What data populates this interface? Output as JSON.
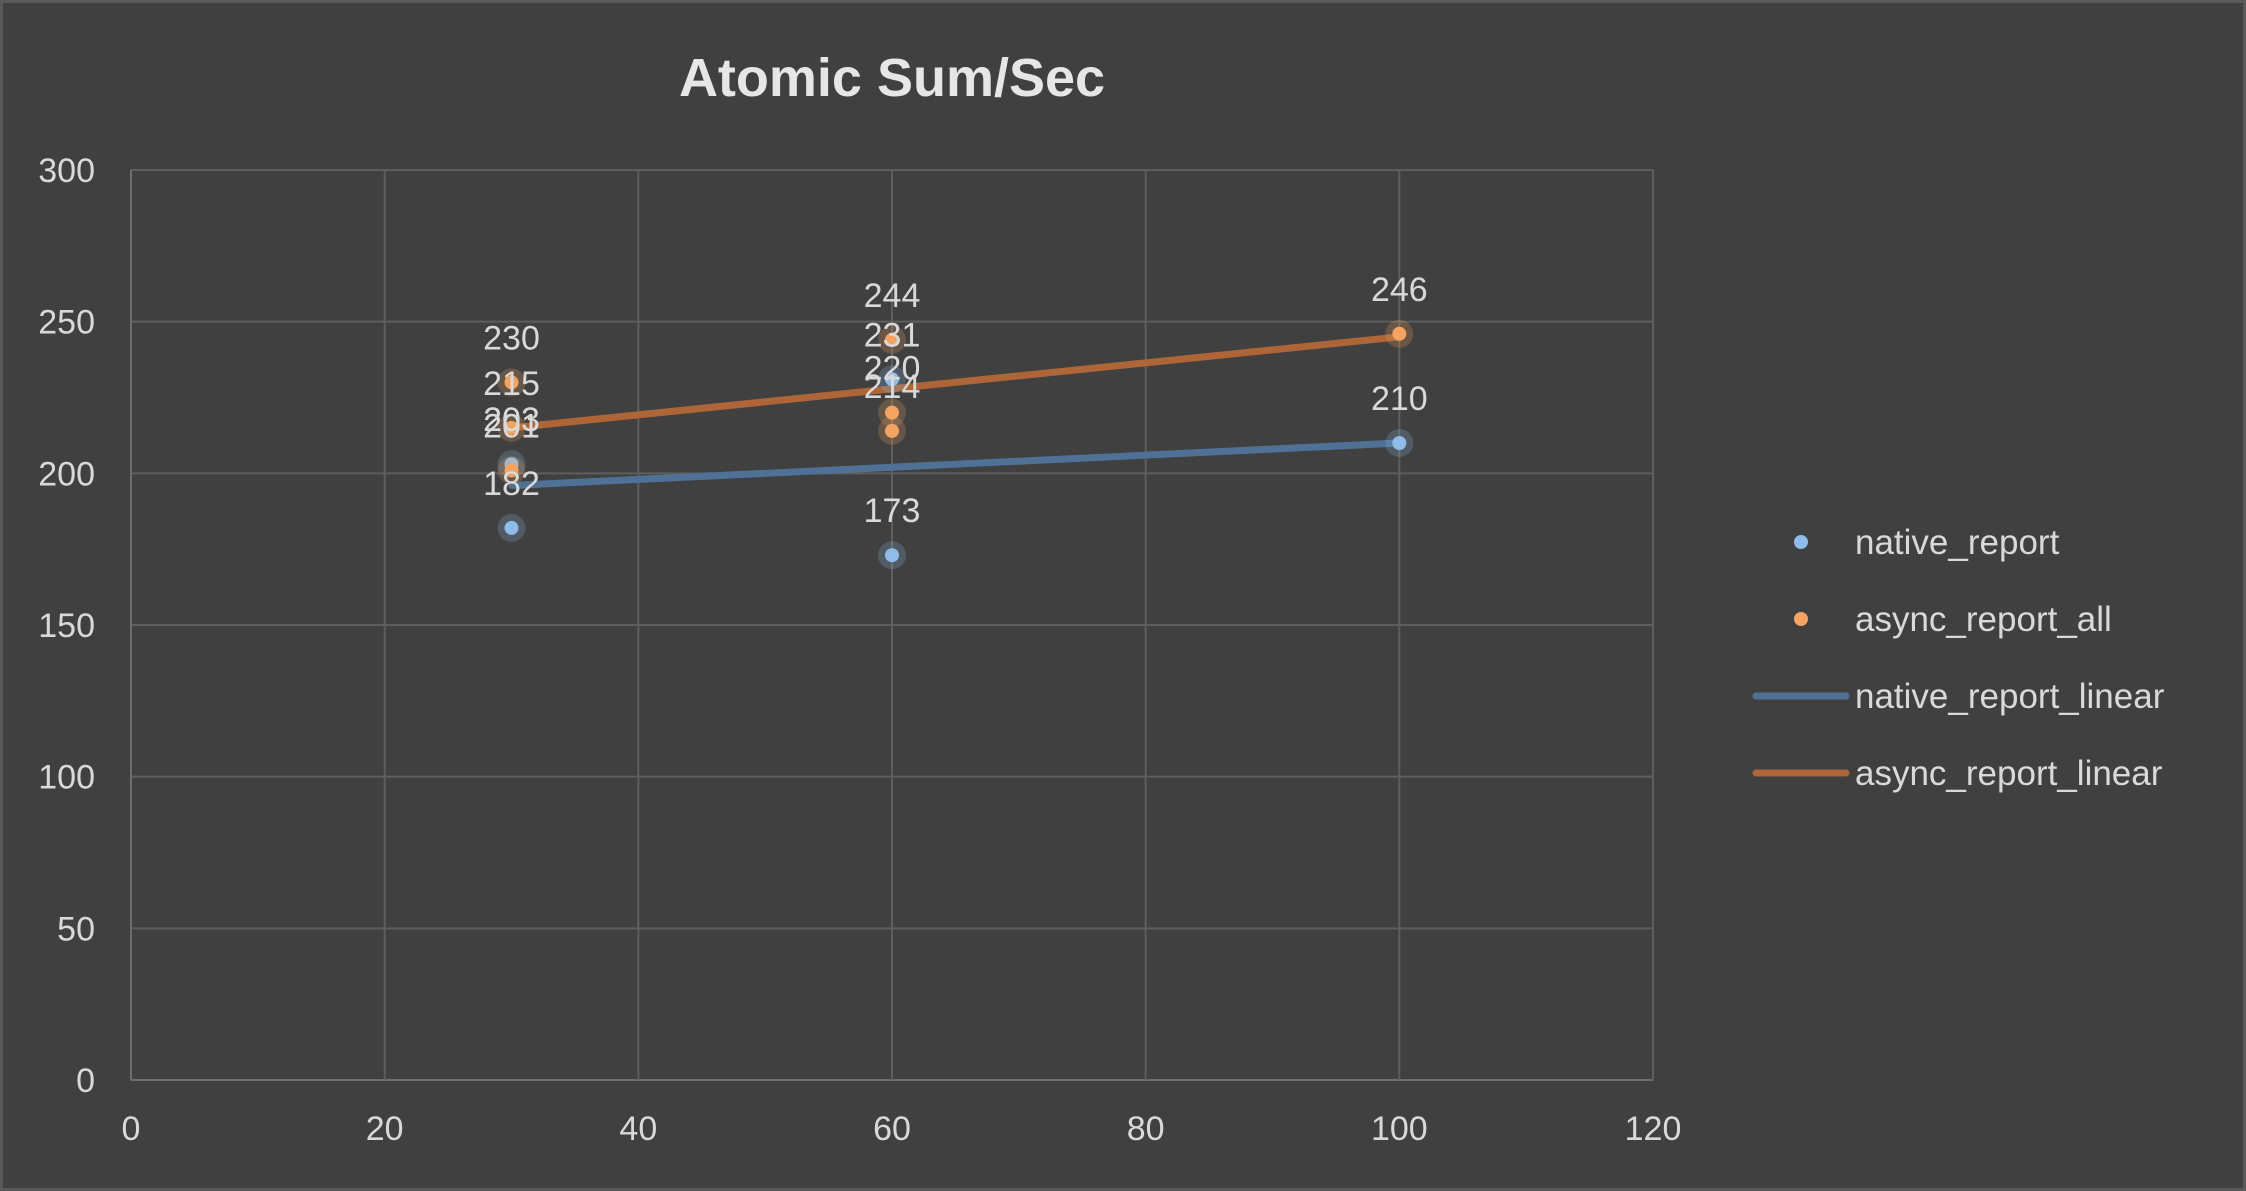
{
  "chart_data": {
    "type": "scatter",
    "title": "Atomic Sum/Sec",
    "xlabel": "",
    "ylabel": "",
    "xlim": [
      0,
      120
    ],
    "ylim": [
      0,
      300
    ],
    "xticks": [
      0,
      20,
      40,
      60,
      80,
      100,
      120
    ],
    "yticks": [
      0,
      50,
      100,
      150,
      200,
      250,
      300
    ],
    "grid": true,
    "legend_position": "right",
    "series": [
      {
        "name": "native_report",
        "kind": "points",
        "color": "#8fbce8",
        "points": [
          {
            "x": 30,
            "y": 182,
            "label": "182"
          },
          {
            "x": 30,
            "y": 203,
            "label": "203"
          },
          {
            "x": 60,
            "y": 173,
            "label": "173"
          },
          {
            "x": 60,
            "y": 231,
            "label": "231"
          },
          {
            "x": 100,
            "y": 210,
            "label": "210"
          }
        ]
      },
      {
        "name": "async_report_all",
        "kind": "points",
        "color": "#f4a460",
        "points": [
          {
            "x": 30,
            "y": 201,
            "label": "201"
          },
          {
            "x": 30,
            "y": 215,
            "label": "215"
          },
          {
            "x": 30,
            "y": 230,
            "label": "230"
          },
          {
            "x": 60,
            "y": 214,
            "label": "214"
          },
          {
            "x": 60,
            "y": 220,
            "label": "220"
          },
          {
            "x": 60,
            "y": 244,
            "label": "244"
          },
          {
            "x": 100,
            "y": 246,
            "label": "246"
          }
        ]
      },
      {
        "name": "native_report_linear",
        "kind": "line",
        "color": "#4f7196",
        "points": [
          {
            "x": 30,
            "y": 196
          },
          {
            "x": 100,
            "y": 210
          }
        ]
      },
      {
        "name": "async_report_linear",
        "kind": "line",
        "color": "#ae6638",
        "points": [
          {
            "x": 30,
            "y": 215
          },
          {
            "x": 100,
            "y": 245
          }
        ]
      }
    ]
  }
}
